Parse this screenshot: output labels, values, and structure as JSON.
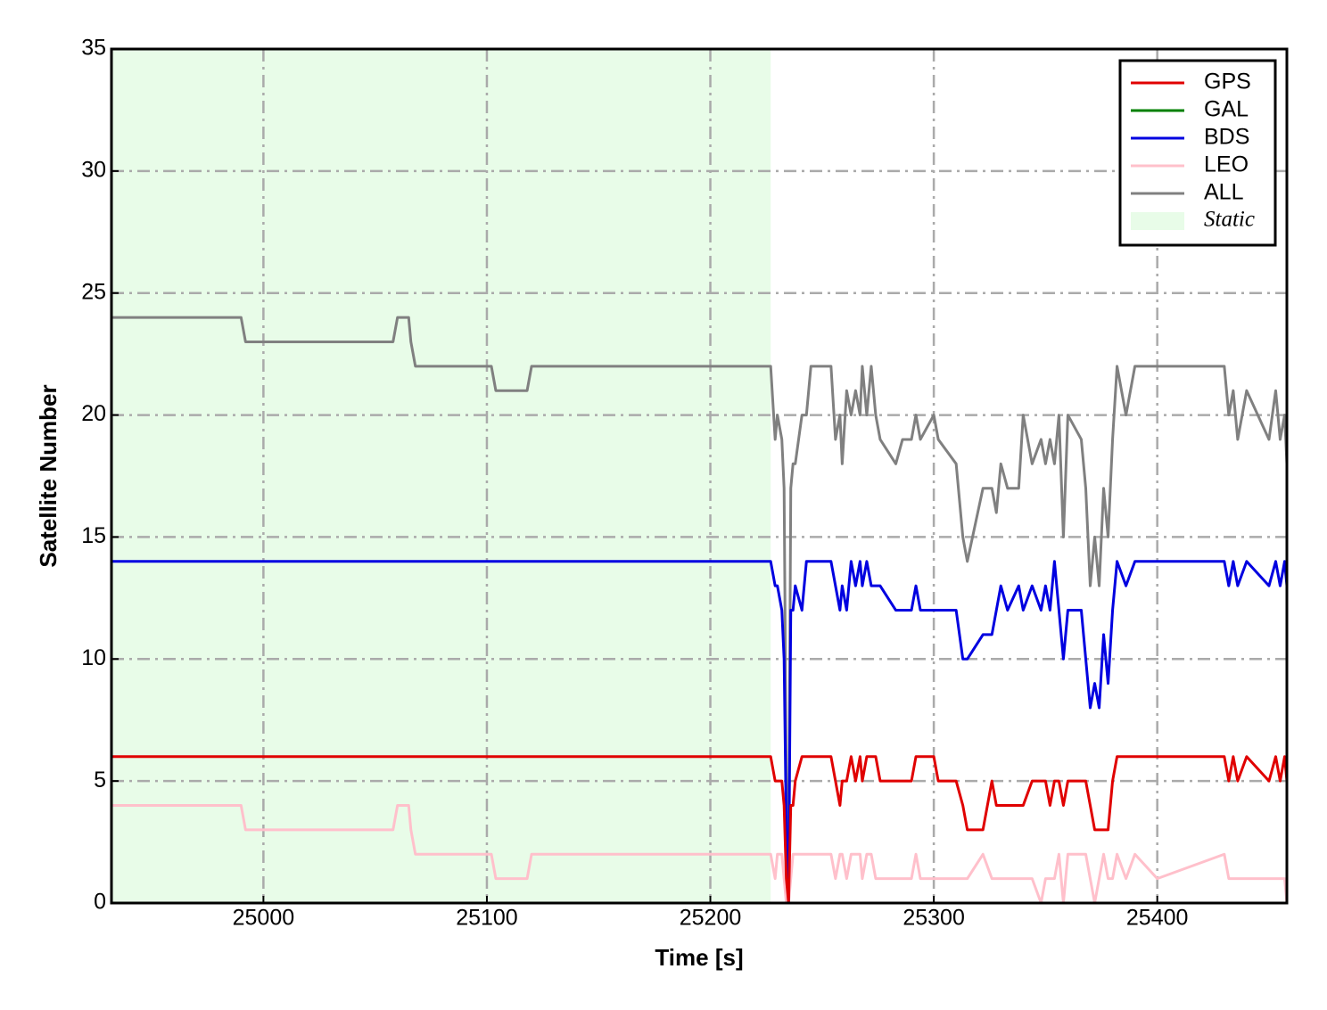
{
  "chart_data": {
    "type": "line",
    "xlabel": "Time [s]",
    "ylabel": "Satellite Number",
    "xlim": [
      24932,
      25458
    ],
    "ylim": [
      0,
      35
    ],
    "xticks": [
      25000,
      25100,
      25200,
      25300,
      25400
    ],
    "yticks": [
      0,
      5,
      10,
      15,
      20,
      25,
      30,
      35
    ],
    "grid": true,
    "legend": "upper right",
    "shaded_region": {
      "name": "Static",
      "range": [
        24932,
        25227
      ],
      "color": "#e8fce8"
    },
    "x": [
      24932,
      24990,
      24992,
      25058,
      25060,
      25065,
      25066,
      25068,
      25102,
      25104,
      25118,
      25120,
      25227,
      25229,
      25230,
      25232,
      25233,
      25234,
      25235,
      25236,
      25237,
      25238,
      25241,
      25243,
      25245,
      25254,
      25256,
      25258,
      25259,
      25261,
      25263,
      25265,
      25267,
      25268,
      25270,
      25272,
      25274,
      25276,
      25283,
      25286,
      25290,
      25292,
      25294,
      25300,
      25302,
      25310,
      25313,
      25315,
      25322,
      25326,
      25328,
      25330,
      25333,
      25338,
      25340,
      25344,
      25348,
      25350,
      25352,
      25354,
      25356,
      25358,
      25360,
      25366,
      25368,
      25370,
      25372,
      25374,
      25376,
      25378,
      25380,
      25382,
      25386,
      25390,
      25400,
      25430,
      25432,
      25434,
      25436,
      25440,
      25450,
      25453,
      25455,
      25457,
      25458
    ],
    "series": [
      {
        "name": "GPS",
        "color": "#e00000",
        "values": [
          6,
          6,
          6,
          6,
          6,
          6,
          6,
          6,
          6,
          6,
          6,
          6,
          6,
          5,
          5,
          5,
          4,
          1,
          0,
          4,
          4,
          5,
          6,
          6,
          6,
          6,
          5,
          4,
          5,
          5,
          6,
          5,
          6,
          5,
          6,
          6,
          6,
          5,
          5,
          5,
          5,
          6,
          6,
          6,
          5,
          5,
          4,
          3,
          3,
          5,
          4,
          4,
          4,
          4,
          4,
          5,
          5,
          5,
          4,
          5,
          5,
          4,
          5,
          5,
          5,
          4,
          3,
          3,
          3,
          3,
          5,
          6,
          6,
          6,
          6,
          6,
          5,
          6,
          5,
          6,
          5,
          6,
          5,
          6,
          5
        ]
      },
      {
        "name": "GAL",
        "color": "#008000",
        "values": [
          0,
          0,
          0,
          0,
          0,
          0,
          0,
          0,
          0,
          0,
          0,
          0,
          0,
          0,
          0,
          0,
          0,
          0,
          0,
          0,
          0,
          0,
          0,
          0,
          0,
          0,
          0,
          0,
          0,
          0,
          0,
          0,
          0,
          0,
          0,
          0,
          0,
          0,
          0,
          0,
          0,
          0,
          0,
          0,
          0,
          0,
          0,
          0,
          0,
          0,
          0,
          0,
          0,
          0,
          0,
          0,
          0,
          0,
          0,
          0,
          0,
          0,
          0,
          0,
          0,
          0,
          0,
          0,
          0,
          0,
          0,
          0,
          0,
          0,
          0,
          0,
          0,
          0,
          0,
          0,
          0,
          0,
          0,
          0,
          0
        ]
      },
      {
        "name": "BDS",
        "color": "#0000e0",
        "values": [
          14,
          14,
          14,
          14,
          14,
          14,
          14,
          14,
          14,
          14,
          14,
          14,
          14,
          13,
          13,
          12,
          10,
          3,
          0,
          12,
          12,
          13,
          12,
          14,
          14,
          14,
          13,
          12,
          13,
          12,
          14,
          13,
          14,
          13,
          14,
          13,
          13,
          13,
          12,
          12,
          12,
          13,
          12,
          12,
          12,
          12,
          10,
          10,
          11,
          11,
          12,
          13,
          12,
          13,
          12,
          13,
          12,
          13,
          12,
          14,
          12,
          10,
          12,
          12,
          10,
          8,
          9,
          8,
          11,
          9,
          12,
          14,
          13,
          14,
          14,
          14,
          13,
          14,
          13,
          14,
          13,
          14,
          13,
          14,
          13
        ]
      },
      {
        "name": "LEO",
        "color": "#ffc0cb",
        "values": [
          4,
          4,
          3,
          3,
          4,
          4,
          3,
          2,
          2,
          1,
          1,
          2,
          2,
          1,
          2,
          2,
          1,
          0,
          0,
          1,
          2,
          2,
          2,
          2,
          2,
          2,
          1,
          2,
          2,
          1,
          2,
          2,
          2,
          1,
          2,
          2,
          1,
          1,
          1,
          1,
          1,
          2,
          1,
          1,
          1,
          1,
          1,
          1,
          2,
          1,
          1,
          1,
          1,
          1,
          1,
          1,
          0,
          1,
          1,
          1,
          2,
          0,
          2,
          2,
          2,
          1,
          0,
          1,
          2,
          1,
          1,
          2,
          1,
          2,
          1,
          2,
          1,
          1,
          1,
          1,
          1,
          1,
          1,
          1,
          0
        ]
      },
      {
        "name": "ALL",
        "color": "#808080",
        "values": [
          24,
          24,
          23,
          23,
          24,
          24,
          23,
          22,
          22,
          21,
          21,
          22,
          22,
          19,
          20,
          19,
          17,
          5,
          1,
          17,
          18,
          18,
          20,
          20,
          22,
          22,
          19,
          20,
          18,
          21,
          20,
          21,
          20,
          22,
          20,
          22,
          20,
          19,
          18,
          19,
          19,
          20,
          19,
          20,
          19,
          18,
          15,
          14,
          17,
          17,
          16,
          18,
          17,
          17,
          20,
          18,
          19,
          18,
          19,
          18,
          20,
          15,
          20,
          19,
          17,
          13,
          15,
          13,
          17,
          15,
          19,
          22,
          20,
          22,
          22,
          22,
          20,
          21,
          19,
          21,
          19,
          21,
          19,
          20,
          18
        ]
      }
    ]
  }
}
